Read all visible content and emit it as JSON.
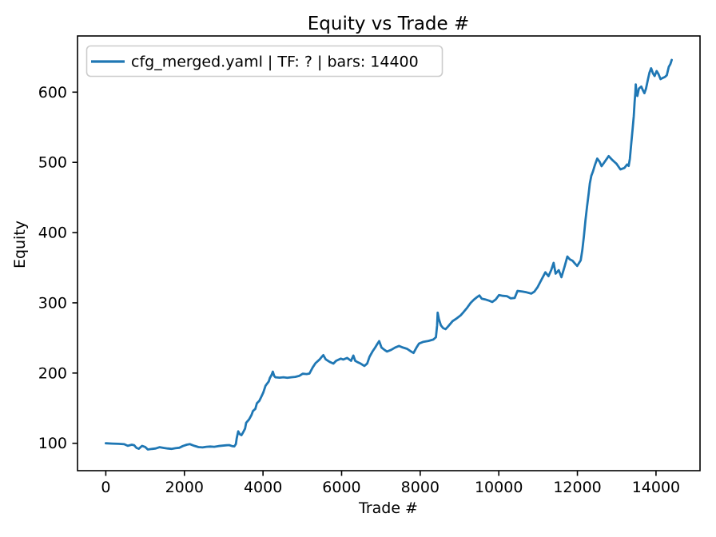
{
  "chart_data": {
    "type": "line",
    "title": "Equity vs Trade #",
    "xlabel": "Trade #",
    "ylabel": "Equity",
    "grid": false,
    "legend_position": "upper left",
    "legend": [
      {
        "label": "cfg_merged.yaml | TF: ? | bars: 14400",
        "color": "#1f77b4"
      }
    ],
    "xlim": [
      -720,
      15120
    ],
    "ylim": [
      61,
      680
    ],
    "x_ticks": [
      "0",
      "2000",
      "4000",
      "6000",
      "8000",
      "10000",
      "12000",
      "14000"
    ],
    "x_tick_values": [
      0,
      2000,
      4000,
      6000,
      8000,
      10000,
      12000,
      14000
    ],
    "y_ticks": [
      "100",
      "200",
      "300",
      "400",
      "500",
      "600"
    ],
    "y_tick_values": [
      100,
      200,
      300,
      400,
      500,
      600
    ],
    "series": [
      {
        "name": "cfg_merged.yaml | TF: ? | bars: 14400",
        "color": "#1f77b4",
        "points": [
          [
            0,
            100
          ],
          [
            160,
            99.6
          ],
          [
            320,
            99.2
          ],
          [
            470,
            98.7
          ],
          [
            560,
            96.4
          ],
          [
            660,
            98
          ],
          [
            720,
            97.3
          ],
          [
            780,
            93.4
          ],
          [
            840,
            92.2
          ],
          [
            920,
            96.3
          ],
          [
            1000,
            94.8
          ],
          [
            1070,
            91.2
          ],
          [
            1170,
            92
          ],
          [
            1270,
            92.6
          ],
          [
            1370,
            94.4
          ],
          [
            1470,
            93.4
          ],
          [
            1570,
            92.6
          ],
          [
            1670,
            92.1
          ],
          [
            1770,
            93
          ],
          [
            1870,
            93.6
          ],
          [
            1960,
            96
          ],
          [
            2060,
            98
          ],
          [
            2140,
            98.8
          ],
          [
            2250,
            96.4
          ],
          [
            2360,
            94.6
          ],
          [
            2460,
            94.1
          ],
          [
            2560,
            95
          ],
          [
            2660,
            95.4
          ],
          [
            2760,
            95
          ],
          [
            2870,
            96.1
          ],
          [
            2970,
            96.6
          ],
          [
            3070,
            97.2
          ],
          [
            3140,
            97.4
          ],
          [
            3210,
            96
          ],
          [
            3270,
            95.6
          ],
          [
            3310,
            99
          ],
          [
            3330,
            107
          ],
          [
            3370,
            117
          ],
          [
            3410,
            113
          ],
          [
            3450,
            111.5
          ],
          [
            3490,
            115
          ],
          [
            3545,
            121
          ],
          [
            3570,
            129
          ],
          [
            3645,
            134
          ],
          [
            3705,
            140
          ],
          [
            3745,
            146
          ],
          [
            3805,
            149
          ],
          [
            3845,
            157
          ],
          [
            3905,
            160.5
          ],
          [
            3955,
            166
          ],
          [
            4005,
            172
          ],
          [
            4065,
            182
          ],
          [
            4145,
            188
          ],
          [
            4175,
            193
          ],
          [
            4215,
            197
          ],
          [
            4250,
            202
          ],
          [
            4285,
            196
          ],
          [
            4315,
            194
          ],
          [
            4420,
            193.5
          ],
          [
            4520,
            194
          ],
          [
            4620,
            193.2
          ],
          [
            4720,
            194
          ],
          [
            4820,
            194.6
          ],
          [
            4920,
            196
          ],
          [
            5010,
            199
          ],
          [
            5110,
            198.6
          ],
          [
            5180,
            199.2
          ],
          [
            5265,
            208
          ],
          [
            5335,
            214
          ],
          [
            5435,
            219
          ],
          [
            5495,
            223
          ],
          [
            5535,
            225.5
          ],
          [
            5595,
            219.5
          ],
          [
            5695,
            216
          ],
          [
            5790,
            213.5
          ],
          [
            5860,
            217.5
          ],
          [
            5980,
            220.5
          ],
          [
            6040,
            219.3
          ],
          [
            6140,
            221.6
          ],
          [
            6240,
            217.5
          ],
          [
            6300,
            225
          ],
          [
            6345,
            217.5
          ],
          [
            6405,
            215.5
          ],
          [
            6480,
            213.6
          ],
          [
            6580,
            210.2
          ],
          [
            6650,
            213.6
          ],
          [
            6710,
            223
          ],
          [
            6785,
            230.7
          ],
          [
            6855,
            236.4
          ],
          [
            6915,
            242
          ],
          [
            6955,
            245.5
          ],
          [
            7015,
            236.4
          ],
          [
            7090,
            233
          ],
          [
            7155,
            230.7
          ],
          [
            7260,
            233
          ],
          [
            7360,
            236.4
          ],
          [
            7460,
            238.6
          ],
          [
            7560,
            236.4
          ],
          [
            7665,
            234.5
          ],
          [
            7770,
            230.7
          ],
          [
            7830,
            228.6
          ],
          [
            7905,
            236.4
          ],
          [
            7970,
            242
          ],
          [
            8070,
            244.3
          ],
          [
            8210,
            245.8
          ],
          [
            8335,
            247.7
          ],
          [
            8400,
            251
          ],
          [
            8430,
            268
          ],
          [
            8445,
            286
          ],
          [
            8475,
            277
          ],
          [
            8525,
            268
          ],
          [
            8585,
            264
          ],
          [
            8645,
            262.5
          ],
          [
            8705,
            266
          ],
          [
            8825,
            274
          ],
          [
            8905,
            277
          ],
          [
            9025,
            282
          ],
          [
            9105,
            287
          ],
          [
            9195,
            293
          ],
          [
            9285,
            300
          ],
          [
            9365,
            304.5
          ],
          [
            9445,
            308
          ],
          [
            9505,
            310.5
          ],
          [
            9565,
            306
          ],
          [
            9655,
            304.8
          ],
          [
            9755,
            303
          ],
          [
            9835,
            301.2
          ],
          [
            9925,
            305
          ],
          [
            10005,
            311
          ],
          [
            10105,
            310
          ],
          [
            10205,
            309.5
          ],
          [
            10305,
            306.3
          ],
          [
            10405,
            307
          ],
          [
            10475,
            317
          ],
          [
            10605,
            316
          ],
          [
            10705,
            315
          ],
          [
            10825,
            313.2
          ],
          [
            10905,
            316
          ],
          [
            10985,
            322
          ],
          [
            11085,
            333
          ],
          [
            11185,
            343.5
          ],
          [
            11265,
            338
          ],
          [
            11335,
            347
          ],
          [
            11395,
            357
          ],
          [
            11445,
            341.5
          ],
          [
            11525,
            346.5
          ],
          [
            11595,
            336.5
          ],
          [
            11675,
            352
          ],
          [
            11745,
            366
          ],
          [
            11805,
            362
          ],
          [
            11875,
            360
          ],
          [
            11935,
            356
          ],
          [
            11995,
            352.5
          ],
          [
            12055,
            358
          ],
          [
            12085,
            360.5
          ],
          [
            12125,
            375
          ],
          [
            12165,
            395
          ],
          [
            12205,
            417
          ],
          [
            12245,
            437
          ],
          [
            12285,
            455
          ],
          [
            12315,
            470
          ],
          [
            12355,
            481
          ],
          [
            12395,
            487
          ],
          [
            12445,
            496
          ],
          [
            12505,
            505.5
          ],
          [
            12565,
            501
          ],
          [
            12615,
            494.5
          ],
          [
            12685,
            500
          ],
          [
            12795,
            509
          ],
          [
            12885,
            503.5
          ],
          [
            12995,
            498
          ],
          [
            13095,
            490
          ],
          [
            13195,
            492
          ],
          [
            13265,
            497
          ],
          [
            13305,
            495
          ],
          [
            13335,
            505
          ],
          [
            13375,
            530
          ],
          [
            13405,
            548
          ],
          [
            13435,
            566
          ],
          [
            13455,
            585
          ],
          [
            13475,
            600
          ],
          [
            13485,
            611
          ],
          [
            13505,
            597.5
          ],
          [
            13525,
            594.5
          ],
          [
            13565,
            605
          ],
          [
            13625,
            608
          ],
          [
            13665,
            603
          ],
          [
            13705,
            598.5
          ],
          [
            13745,
            605
          ],
          [
            13795,
            618
          ],
          [
            13835,
            628
          ],
          [
            13875,
            634
          ],
          [
            13925,
            626.5
          ],
          [
            13965,
            623
          ],
          [
            14015,
            630
          ],
          [
            14065,
            625.5
          ],
          [
            14115,
            618.5
          ],
          [
            14165,
            620
          ],
          [
            14225,
            621.5
          ],
          [
            14275,
            624
          ],
          [
            14325,
            636
          ],
          [
            14365,
            640
          ],
          [
            14400,
            646
          ]
        ]
      }
    ]
  },
  "colors": {
    "line": "#1f77b4",
    "spine": "#000000",
    "legend_border": "#cccccc",
    "background": "#ffffff"
  }
}
